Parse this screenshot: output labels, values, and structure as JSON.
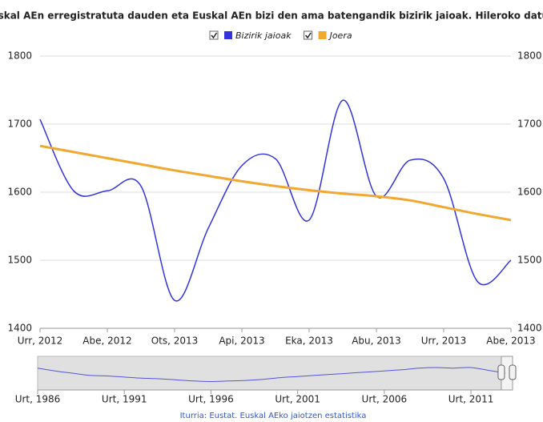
{
  "chart_data": {
    "type": "line",
    "title": "Euskal AEn erregistratuta dauden eta Euskal AEn bizi den ama batengandik bizirik jaioak. Hileroko datuak",
    "categories": [
      "Urr, 2012",
      null,
      "Abe, 2012",
      null,
      "Ots, 2013",
      null,
      "Api, 2013",
      null,
      "Eka, 2013",
      null,
      "Abu, 2013",
      null,
      "Urr, 2013",
      null,
      "Abe, 2013"
    ],
    "series": [
      {
        "name": "Bizirik jaioak",
        "color": "#3333dd",
        "values": [
          1707,
          1602,
          1602,
          1609,
          1441,
          1547,
          1639,
          1649,
          1559,
          1735,
          1594,
          1647,
          1620,
          1469,
          1500
        ]
      },
      {
        "name": "Joera",
        "color": "#f0a830",
        "values": [
          1668,
          1659,
          1650,
          1641,
          1632,
          1624,
          1616,
          1609,
          1603,
          1598,
          1594,
          1588,
          1578,
          1568,
          1559
        ]
      }
    ],
    "ylim": [
      1400,
      1800
    ],
    "yticks": [
      1400,
      1500,
      1600,
      1700,
      1800
    ],
    "grid": true,
    "legend": "top",
    "navigator": {
      "x": [
        1986,
        1987,
        1988,
        1989,
        1990,
        1991,
        1992,
        1993,
        1994,
        1995,
        1996,
        1997,
        1998,
        1999,
        2000,
        2001,
        2002,
        2003,
        2004,
        2005,
        2006,
        2007,
        2008,
        2009,
        2010,
        2011,
        2012,
        2013
      ],
      "values": [
        1690,
        1640,
        1600,
        1560,
        1550,
        1530,
        1510,
        1500,
        1480,
        1460,
        1450,
        1460,
        1470,
        1490,
        1520,
        1540,
        1560,
        1580,
        1600,
        1620,
        1640,
        1660,
        1690,
        1700,
        1690,
        1700,
        1650,
        1600
      ],
      "xlim": [
        1986,
        2013.4
      ],
      "ylim": [
        1300,
        1900
      ],
      "xticks": [
        {
          "value": 1986,
          "label": "Urt, 1986"
        },
        {
          "value": 1991,
          "label": "Urt, 1991"
        },
        {
          "value": 1996,
          "label": "Urt, 1996"
        },
        {
          "value": 2001,
          "label": "Urt, 2001"
        },
        {
          "value": 2006,
          "label": "Urt, 2006"
        },
        {
          "value": 2011,
          "label": "Urt, 2011"
        }
      ],
      "selection": [
        2012.75,
        2013.4
      ]
    },
    "credits": "Iturria: Eustat. Euskal AEko jaiotzen estatistika"
  }
}
